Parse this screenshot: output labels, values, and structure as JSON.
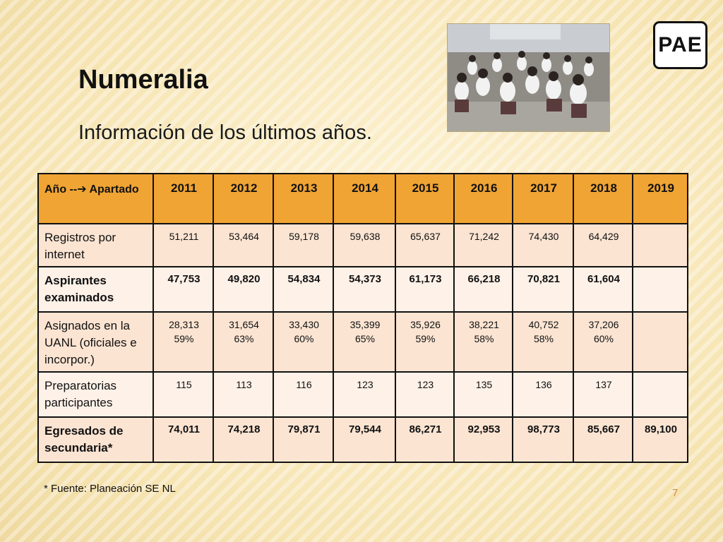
{
  "slide": {
    "title": "Numeralia",
    "subtitle": "Información de los últimos años.",
    "logo_text": "PAE",
    "footnote": "* Fuente: Planeación SE NL",
    "page_number": "7"
  },
  "table": {
    "header": [
      "Año --➔ Apartado",
      "2011",
      "2012",
      "2013",
      "2014",
      "2015",
      "2016",
      "2017",
      "2018",
      "2019"
    ],
    "rows": [
      {
        "label": "Registros por internet",
        "cells": [
          "51,211",
          "53,464",
          "59,178",
          "59,638",
          "65,637",
          "71,242",
          "74,430",
          "64,429",
          ""
        ]
      },
      {
        "label": "Aspirantes examinados",
        "cells": [
          "47,753",
          "49,820",
          "54,834",
          "54,373",
          "61,173",
          "66,218",
          "70,821",
          "61,604",
          ""
        ]
      },
      {
        "label": "Asignados en la UANL (oficiales e incorpor.)",
        "cells": [
          {
            "value": "28,313",
            "pct": "59%"
          },
          {
            "value": "31,654",
            "pct": "63%"
          },
          {
            "value": "33,430",
            "pct": "60%"
          },
          {
            "value": "35,399",
            "pct": "65%"
          },
          {
            "value": "35,926",
            "pct": "59%"
          },
          {
            "value": "38,221",
            "pct": "58%"
          },
          {
            "value": "40,752",
            "pct": "58%"
          },
          {
            "value": "37,206",
            "pct": "60%"
          },
          {
            "value": "",
            "pct": ""
          }
        ]
      },
      {
        "label": "Preparatorias participantes",
        "cells": [
          "115",
          "113",
          "116",
          "123",
          "123",
          "135",
          "136",
          "137",
          ""
        ]
      },
      {
        "label": "Egresados de secundaria*",
        "cells": [
          "74,011",
          "74,218",
          "79,871",
          "79,544",
          "86,271",
          "92,953",
          "98,773",
          "85,667",
          "89,100"
        ]
      }
    ]
  },
  "colors": {
    "header_bg": "#f0a433",
    "row_bg": "#fbe4d2",
    "row_alt_bg": "#fdf1e8",
    "background": "#f8e9bf"
  }
}
